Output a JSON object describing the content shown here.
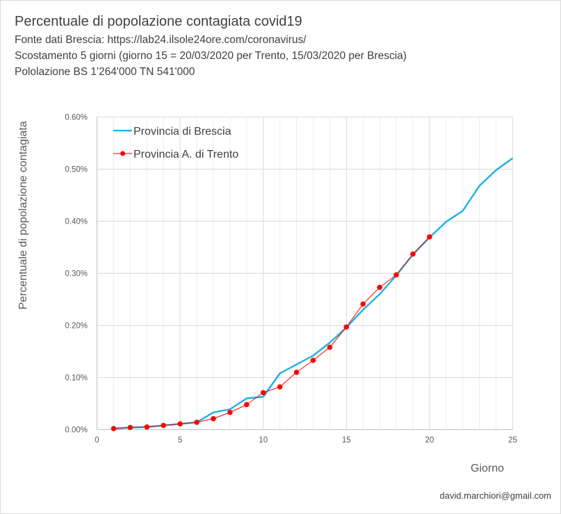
{
  "header": {
    "title": "Percentuale di popolazione contagiata covid19",
    "subtitle_lines": [
      "Fonte dati Brescia: https://lab24.ilsole24ore.com/coronavirus/",
      "Scostamento 5 giorni (giorno 15 = 20/03/2020 per Trento, 15/03/2020 per Brescia)",
      "Pololazione BS 1'264'000  TN 541'000"
    ]
  },
  "footer": {
    "credit": "david.marchiori@gmail.com"
  },
  "colors": {
    "brescia": "#1CB0E6",
    "trento": "#FF0000",
    "grid_major": "#d9d9d9",
    "grid_minor": "#ededed"
  },
  "chart_data": {
    "type": "line",
    "title": "Percentuale di popolazione contagiata covid19",
    "xlabel": "Giorno",
    "ylabel": "Percentuale di popolazione contagiata",
    "xlim": [
      0,
      25
    ],
    "ylim": [
      0,
      0.6
    ],
    "x_ticks": [
      0,
      5,
      10,
      15,
      20,
      25
    ],
    "x_tick_labels": [
      "0",
      "5",
      "10",
      "15",
      "20",
      "25"
    ],
    "y_ticks": [
      0,
      0.1,
      0.2,
      0.3,
      0.4,
      0.5,
      0.6
    ],
    "y_tick_labels": [
      "0.00%",
      "0.10%",
      "0.20%",
      "0.30%",
      "0.40%",
      "0.50%",
      "0.60%"
    ],
    "grid": true,
    "legend": "top-left",
    "series": [
      {
        "name": "Provincia di Brescia",
        "marker": false,
        "x": [
          1,
          2,
          3,
          4,
          5,
          6,
          7,
          8,
          9,
          10,
          11,
          12,
          13,
          14,
          15,
          16,
          17,
          18,
          19,
          20,
          21,
          22,
          23,
          24,
          25
        ],
        "values": [
          0.002,
          0.004,
          0.005,
          0.008,
          0.011,
          0.014,
          0.033,
          0.039,
          0.06,
          0.063,
          0.108,
          0.125,
          0.142,
          0.167,
          0.196,
          0.23,
          0.26,
          0.296,
          0.336,
          0.369,
          0.399,
          0.42,
          0.468,
          0.498,
          0.521
        ]
      },
      {
        "name": "Provincia A. di Trento",
        "marker": true,
        "x": [
          1,
          2,
          3,
          4,
          5,
          6,
          7,
          8,
          9,
          10,
          11,
          12,
          13,
          14,
          15,
          16,
          17,
          18,
          19,
          20
        ],
        "values": [
          0.002,
          0.004,
          0.005,
          0.008,
          0.011,
          0.014,
          0.021,
          0.033,
          0.048,
          0.071,
          0.082,
          0.11,
          0.133,
          0.158,
          0.197,
          0.241,
          0.273,
          0.297,
          0.337,
          0.37
        ]
      }
    ]
  }
}
